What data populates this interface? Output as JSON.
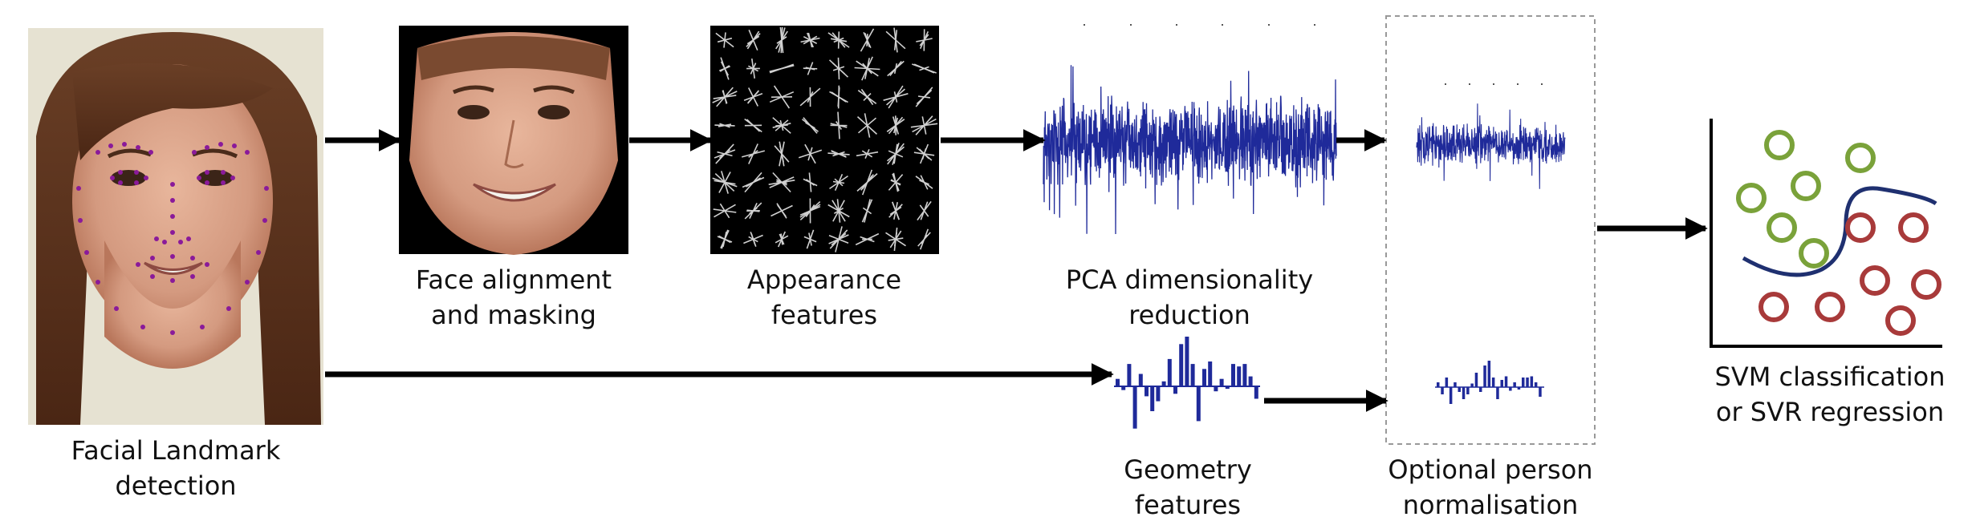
{
  "labels": {
    "landmark": [
      "Facial Landmark",
      "detection"
    ],
    "align": [
      "Face alignment",
      "and masking"
    ],
    "appearance": [
      "Appearance",
      "features"
    ],
    "pca": [
      "PCA dimensionality",
      "reduction"
    ],
    "geometry": [
      "Geometry",
      "features"
    ],
    "normalisation": [
      "Optional person",
      "normalisation"
    ],
    "svm": [
      "SVM classification",
      "or SVR regression"
    ]
  },
  "icons": {
    "face_photo": "face-photo-with-landmarks",
    "aligned_face": "masked-aligned-face",
    "hog_grid": "appearance-feature-grid",
    "pca_signal": "pca-signal-plot",
    "geometry_bars": "geometry-bar-plot",
    "norm_signal": "normalised-signal-plot",
    "norm_bars": "normalised-bar-plot",
    "svm_plot": "svm-scatter-plot"
  },
  "colors": {
    "signal": "#1f2a9a",
    "landmark": "#8a1a9a",
    "class_a": "#7aa23a",
    "class_b": "#a83a3a",
    "boundary": "#1f3070",
    "arrow": "#000000",
    "dashed_box": "#999999"
  }
}
